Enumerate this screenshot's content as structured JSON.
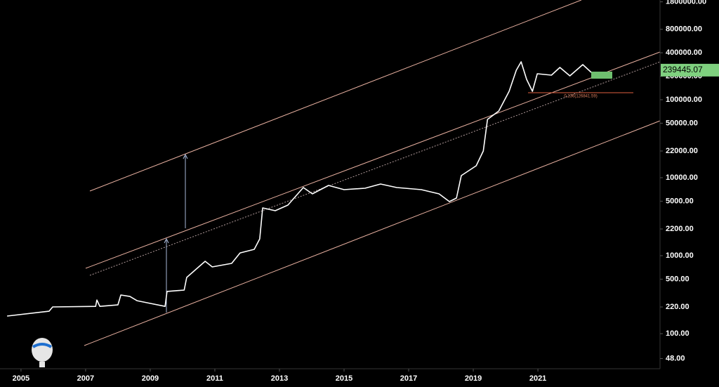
{
  "chart_data": {
    "type": "line",
    "x": [
      2004.57,
      2005.87,
      2005.98,
      2007.31,
      2007.35,
      2007.44,
      2008.0,
      2008.09,
      2008.37,
      2008.59,
      2009.02,
      2009.46,
      2009.52,
      2010.05,
      2010.13,
      2010.55,
      2010.7,
      2010.92,
      2011.52,
      2011.78,
      2012.22,
      2012.39,
      2012.48,
      2012.87,
      2013.26,
      2013.74,
      2014.02,
      2014.52,
      2015.0,
      2015.65,
      2016.13,
      2016.63,
      2017.39,
      2017.94,
      2018.26,
      2018.48,
      2018.63,
      2019.09,
      2019.31,
      2019.44,
      2019.79,
      2020.11,
      2020.33,
      2020.48,
      2020.65,
      2020.83,
      2020.98,
      2021.42,
      2021.68,
      2021.99,
      2022.39,
      2022.65
    ],
    "values": [
      168,
      194,
      220,
      224,
      270,
      224,
      234,
      313,
      300,
      265,
      244,
      224,
      348,
      362,
      526,
      748,
      847,
      718,
      796,
      1086,
      1205,
      1644,
      4102,
      3776,
      4457,
      7482,
      6209,
      7962,
      7031,
      7328,
      8299,
      7482,
      7031,
      6209,
      4944,
      5483,
      10640,
      14220,
      21980,
      55980,
      71780,
      128200,
      238800,
      306200,
      182400,
      128200,
      215300,
      206500,
      259400,
      202300,
      281800,
      224400
    ],
    "color": "#ffffff",
    "log_scale": true,
    "y_axis_side": "right",
    "xlim": [
      2004.35,
      2024.78
    ],
    "xticks": [
      2005,
      2007,
      2009,
      2011,
      2013,
      2015,
      2017,
      2019,
      2021
    ],
    "ylim": [
      35.5,
      1900000
    ],
    "yticks": [
      {
        "value": 1800000,
        "label": "1800000.00"
      },
      {
        "value": 800000,
        "label": "800000.00"
      },
      {
        "value": 400000,
        "label": "400000.00"
      },
      {
        "value": 200000,
        "label": "200000.00"
      },
      {
        "value": 100000,
        "label": "100000.00"
      },
      {
        "value": 50000,
        "label": "50000.00"
      },
      {
        "value": 22000,
        "label": "22000.00"
      },
      {
        "value": 10000,
        "label": "10000.00"
      },
      {
        "value": 5000,
        "label": "5000.00"
      },
      {
        "value": 2200,
        "label": "2200.00"
      },
      {
        "value": 1000,
        "label": "1000.00"
      },
      {
        "value": 500,
        "label": "500.00"
      },
      {
        "value": 220,
        "label": "220.00"
      },
      {
        "value": 100,
        "label": "100.00"
      },
      {
        "value": 48,
        "label": "48.00"
      }
    ],
    "last_price": 239445.07,
    "fib_label": "0.236(126841.59)"
  }
}
